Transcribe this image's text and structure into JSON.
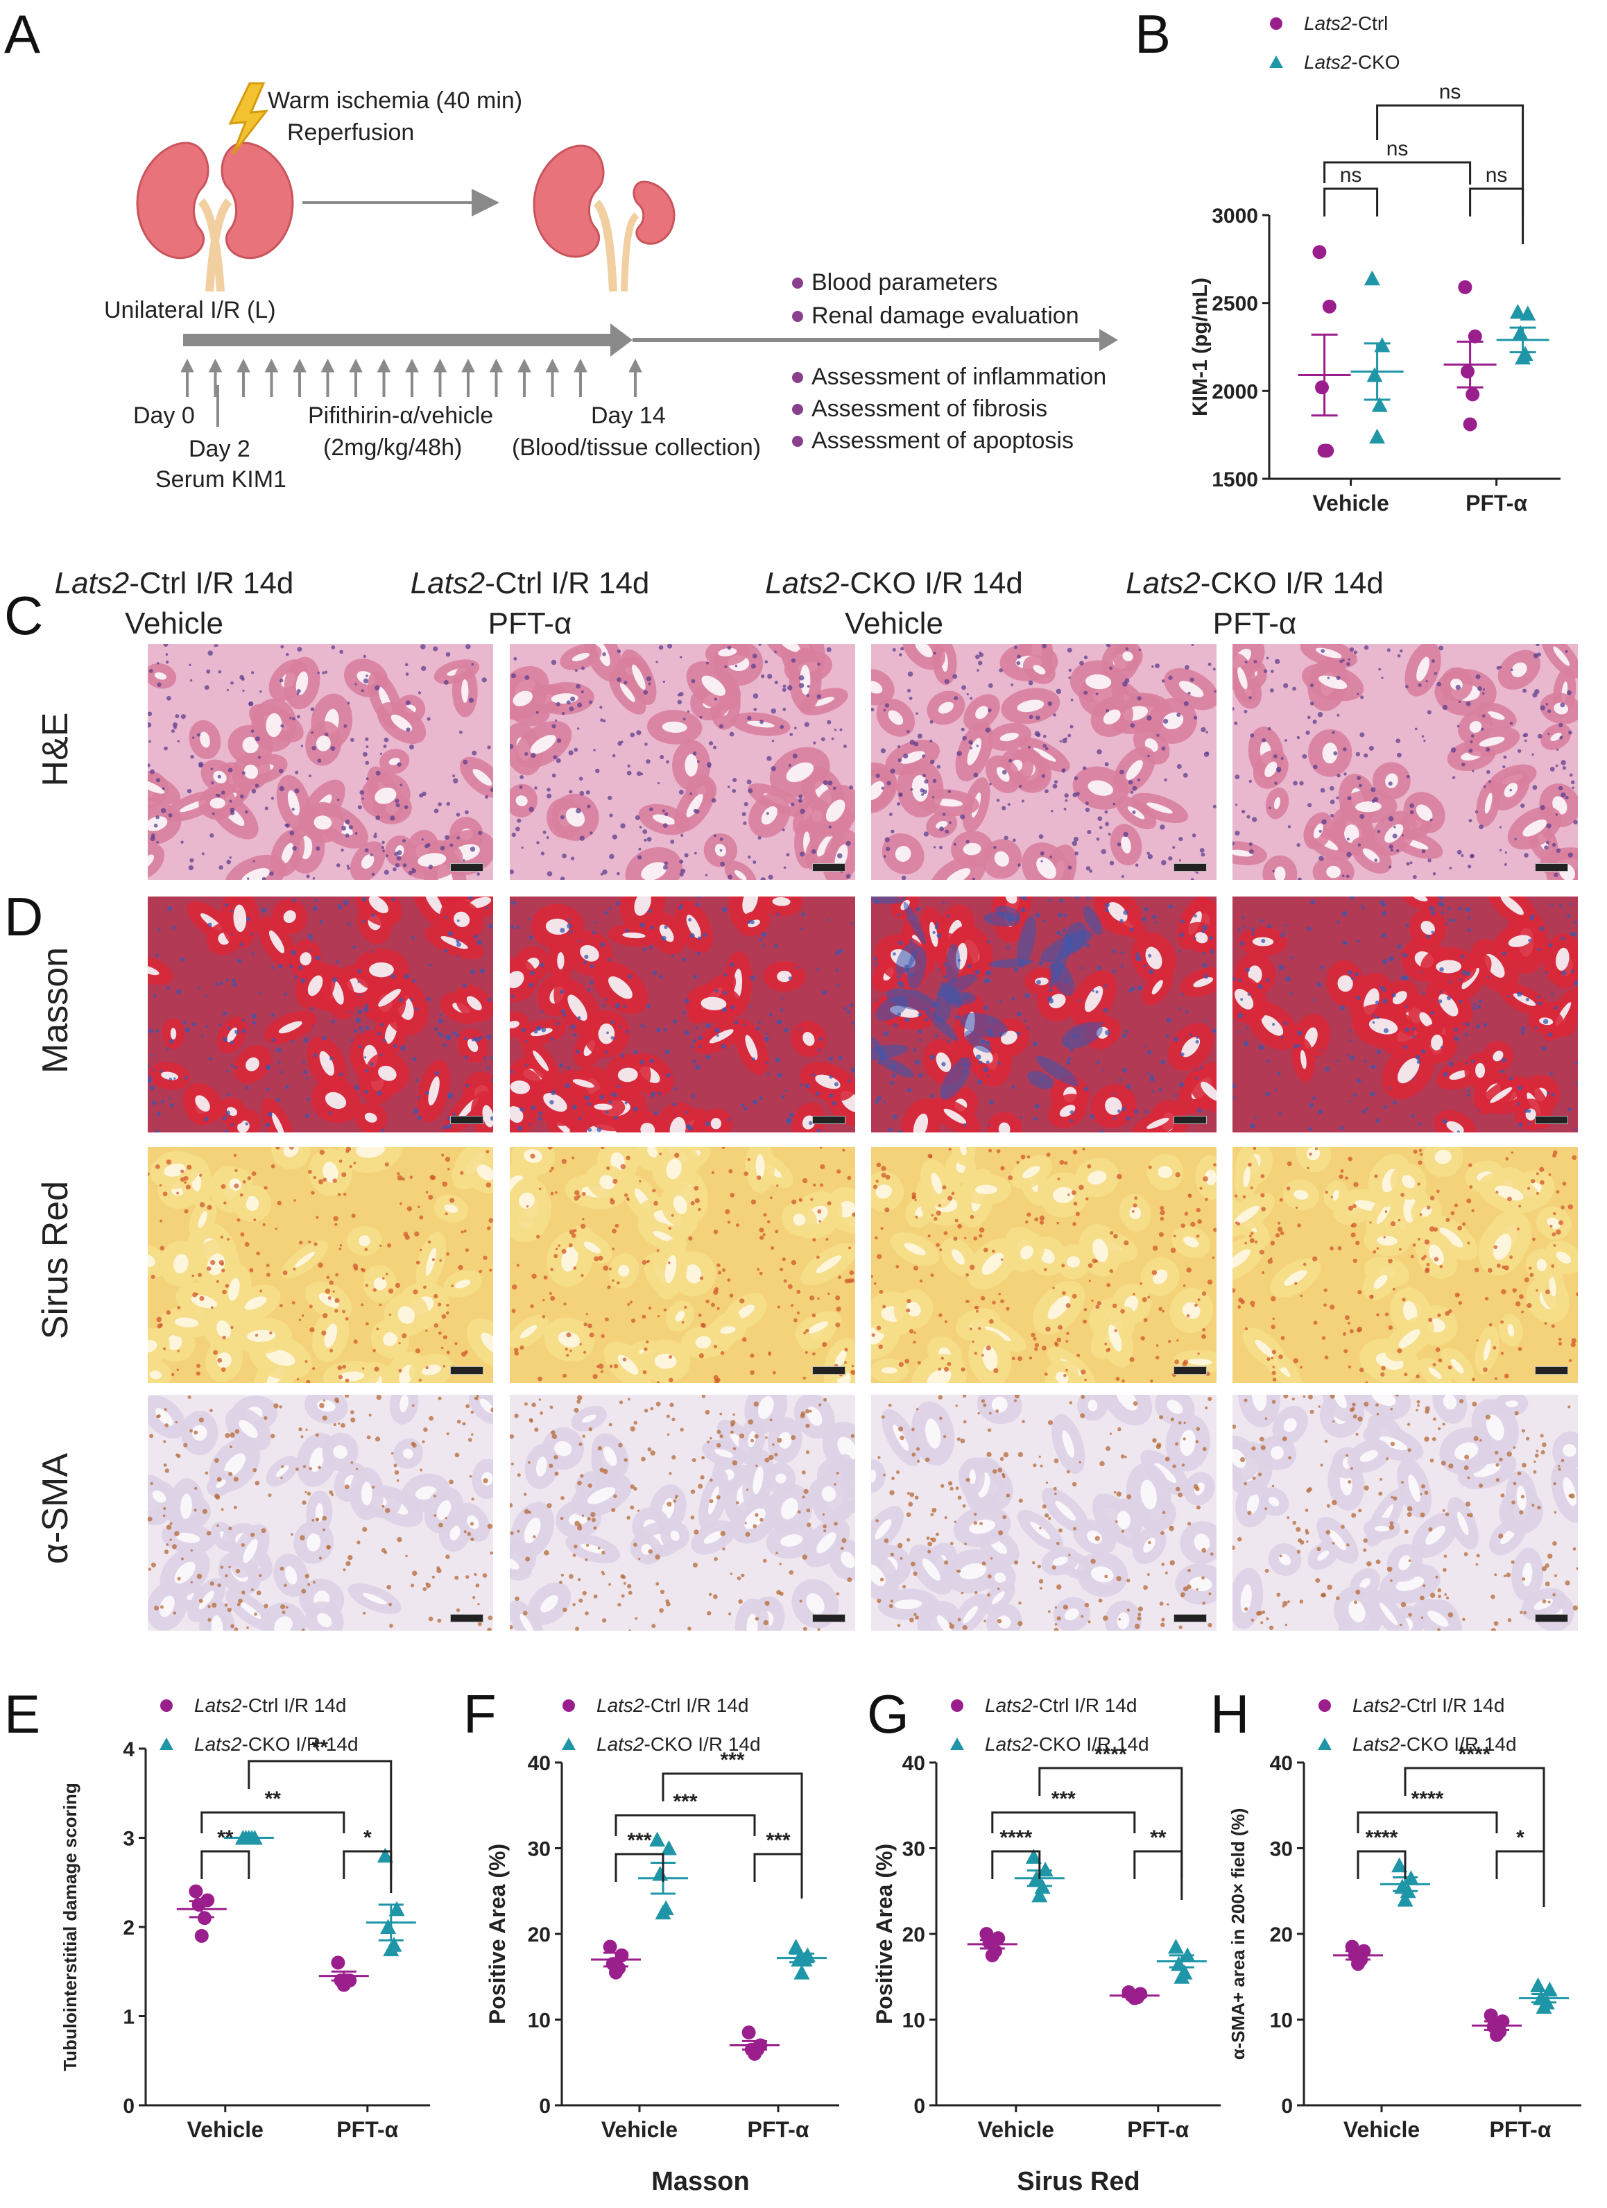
{
  "panels": {
    "A": {
      "letter": "A",
      "ischemia_label": "Warm ischemia (40 min)",
      "reperfusion_label": "Reperfusion",
      "unilateral_label": "Unilateral I/R (L)",
      "day0": "Day 0",
      "day2": "Day 2",
      "serum": "Serum KIM1",
      "drug": "Pifithirin-α/vehicle",
      "dose": "(2mg/kg/48h)",
      "day14": "Day 14",
      "collection": "(Blood/tissue collection)",
      "outcomes": [
        "Blood parameters",
        "Renal damage evaluation",
        "Assessment of inflammation",
        "Assessment of fibrosis",
        "Assessment of apoptosis"
      ],
      "colors": {
        "kidney": "#e8737a",
        "ureter": "#f4d7b0",
        "arrow": "#808080",
        "bolt": "#f2c230",
        "bullet": "#8a3f8e"
      }
    },
    "B": {
      "letter": "B"
    },
    "C": {
      "letter": "C"
    },
    "D": {
      "letter": "D"
    },
    "E": {
      "letter": "E"
    },
    "F": {
      "letter": "F"
    },
    "G": {
      "letter": "G"
    },
    "H": {
      "letter": "H"
    }
  },
  "histology": {
    "columns": [
      {
        "gene": "Lats2",
        "rest": "-Ctrl I/R 14d",
        "treatment": "Vehicle"
      },
      {
        "gene": "Lats2",
        "rest": "-Ctrl I/R 14d",
        "treatment": "PFT-α"
      },
      {
        "gene": "Lats2",
        "rest": "-CKO I/R 14d",
        "treatment": "Vehicle"
      },
      {
        "gene": "Lats2",
        "rest": "-CKO I/R 14d",
        "treatment": "PFT-α"
      }
    ],
    "rows": [
      {
        "label": "H&E",
        "stain": "he"
      },
      {
        "label": "Masson",
        "stain": "masson"
      },
      {
        "label": "Sirus Red",
        "stain": "sirius"
      },
      {
        "label": "α-SMA",
        "stain": "sma"
      }
    ],
    "stain_colors": {
      "he": {
        "bg": "#e9b8cf",
        "tubule": "#d9809f",
        "lumen": "#f8eef4",
        "nuclei": "#5c3f8e"
      },
      "masson": {
        "bg": "#b23a55",
        "tubule": "#d8283a",
        "lumen": "#f3e4ea",
        "nuclei": "#3b58b0"
      },
      "sirius": {
        "bg": "#f3d27a",
        "tubule": "#f6de8a",
        "lumen": "#fdf6dc",
        "nuclei": "#d2572c"
      },
      "sma": {
        "bg": "#eee7f0",
        "tubule": "#ddd2e6",
        "lumen": "#faf7fb",
        "nuclei": "#b56a35"
      }
    }
  },
  "chart_data": [
    {
      "panel": "B",
      "type": "scatter",
      "ylabel": "KIM-1 (pg/mL)",
      "xlabel": "",
      "categories": [
        "Vehicle",
        "PFT-α"
      ],
      "ylim": [
        1500,
        3000
      ],
      "yticks": [
        1500,
        2000,
        2500,
        3000
      ],
      "legend": {
        "placement": "top",
        "entries": [
          {
            "gene": "Lats2",
            "rest": "-Ctrl"
          },
          {
            "gene": "Lats2",
            "rest": "-CKO"
          }
        ]
      },
      "series": [
        {
          "marker": "circle",
          "color": "#9a1e8c",
          "groups": [
            [
              2790,
              2480,
              2020,
              1660,
              1660
            ],
            [
              2590,
              2310,
              2110,
              1980,
              1810
            ]
          ],
          "means": [
            2090,
            2150
          ],
          "sem": [
            230,
            130
          ]
        },
        {
          "marker": "triangle",
          "color": "#1e96a7",
          "groups": [
            [
              2640,
              2260,
              2090,
              1920,
              1740
            ],
            [
              2450,
              2440,
              2330,
              2210,
              2190
            ]
          ],
          "means": [
            2110,
            2290
          ],
          "sem": [
            160,
            70
          ]
        }
      ],
      "significance": [
        {
          "from": [
            0,
            0
          ],
          "to": [
            0,
            1
          ],
          "label": "ns",
          "level": 0
        },
        {
          "from": [
            1,
            0
          ],
          "to": [
            1,
            1
          ],
          "label": "ns",
          "level": 0
        },
        {
          "from": [
            0,
            0
          ],
          "to": [
            1,
            0
          ],
          "label": "ns",
          "level": 1
        },
        {
          "from": [
            0,
            1
          ],
          "to": [
            1,
            1
          ],
          "label": "ns",
          "level": 2
        }
      ]
    },
    {
      "panel": "E",
      "type": "scatter",
      "ylabel": "Tubulointerstitial damage scoring",
      "xlabel": "",
      "categories": [
        "Vehicle",
        "PFT-α"
      ],
      "ylim": [
        0,
        4
      ],
      "yticks": [
        0,
        1,
        2,
        3,
        4
      ],
      "legend": {
        "placement": "top",
        "entries": [
          {
            "gene": "Lats2",
            "rest": "-Ctrl I/R 14d"
          },
          {
            "gene": "Lats2",
            "rest": "-CKO I/R 14d"
          }
        ]
      },
      "series": [
        {
          "marker": "circle",
          "color": "#9a1e8c",
          "groups": [
            [
              2.4,
              2.3,
              2.25,
              2.1,
              1.9
            ],
            [
              1.6,
              1.4,
              1.4,
              1.4,
              1.35
            ]
          ],
          "means": [
            2.2,
            1.45
          ],
          "sem": [
            0.09,
            0.05
          ]
        },
        {
          "marker": "triangle",
          "color": "#1e96a7",
          "groups": [
            [
              3.0,
              3.0,
              3.0,
              3.0,
              3.0
            ],
            [
              2.8,
              2.2,
              2.0,
              1.8,
              1.75
            ]
          ],
          "means": [
            3.0,
            2.05
          ],
          "sem": [
            0.0,
            0.2
          ]
        }
      ],
      "significance": [
        {
          "from": [
            0,
            0
          ],
          "to": [
            0,
            1
          ],
          "label": "**",
          "level": 0
        },
        {
          "from": [
            1,
            0
          ],
          "to": [
            1,
            1
          ],
          "label": "*",
          "level": 0
        },
        {
          "from": [
            0,
            0
          ],
          "to": [
            1,
            0
          ],
          "label": "**",
          "level": 1
        },
        {
          "from": [
            0,
            1
          ],
          "to": [
            1,
            1
          ],
          "label": "**",
          "level": 2
        }
      ]
    },
    {
      "panel": "F",
      "type": "scatter",
      "ylabel": "Positive Area (%)",
      "xlabel": "Masson",
      "categories": [
        "Vehicle",
        "PFT-α"
      ],
      "ylim": [
        0,
        40
      ],
      "yticks": [
        0,
        10,
        20,
        30,
        40
      ],
      "legend": {
        "placement": "top",
        "entries": [
          {
            "gene": "Lats2",
            "rest": "-Ctrl I/R 14d"
          },
          {
            "gene": "Lats2",
            "rest": "-CKO I/R 14d"
          }
        ]
      },
      "series": [
        {
          "marker": "circle",
          "color": "#9a1e8c",
          "groups": [
            [
              18.5,
              17.5,
              16.5,
              16.0,
              15.5
            ],
            [
              8.5,
              7.0,
              6.5,
              6.5,
              6.0
            ]
          ],
          "means": [
            17.0,
            7.0
          ],
          "sem": [
            0.8,
            0.5
          ]
        },
        {
          "marker": "triangle",
          "color": "#1e96a7",
          "groups": [
            [
              31.0,
              30.0,
              27.0,
              23.0,
              22.5
            ],
            [
              18.5,
              17.5,
              17.0,
              17.0,
              15.5
            ]
          ],
          "means": [
            26.5,
            17.2
          ],
          "sem": [
            1.8,
            0.5
          ]
        }
      ],
      "significance": [
        {
          "from": [
            0,
            0
          ],
          "to": [
            0,
            1
          ],
          "label": "***",
          "level": 0
        },
        {
          "from": [
            1,
            0
          ],
          "to": [
            1,
            1
          ],
          "label": "***",
          "level": 0
        },
        {
          "from": [
            0,
            0
          ],
          "to": [
            1,
            0
          ],
          "label": "***",
          "level": 1
        },
        {
          "from": [
            0,
            1
          ],
          "to": [
            1,
            1
          ],
          "label": "***",
          "level": 2
        }
      ]
    },
    {
      "panel": "G",
      "type": "scatter",
      "ylabel": "Positive Area (%)",
      "xlabel": "Sirus Red",
      "categories": [
        "Vehicle",
        "PFT-α"
      ],
      "ylim": [
        0,
        40
      ],
      "yticks": [
        0,
        10,
        20,
        30,
        40
      ],
      "legend": {
        "placement": "top",
        "entries": [
          {
            "gene": "Lats2",
            "rest": "-Ctrl I/R 14d"
          },
          {
            "gene": "Lats2",
            "rest": "-CKO I/R 14d"
          }
        ]
      },
      "series": [
        {
          "marker": "circle",
          "color": "#9a1e8c",
          "groups": [
            [
              20.0,
              19.5,
              19.0,
              18.0,
              17.5
            ],
            [
              13.2,
              13.0,
              12.8,
              12.6,
              12.5
            ]
          ],
          "means": [
            18.8,
            12.8
          ],
          "sem": [
            0.5,
            0.15
          ]
        },
        {
          "marker": "triangle",
          "color": "#1e96a7",
          "groups": [
            [
              29.0,
              27.5,
              26.5,
              25.5,
              24.5
            ],
            [
              18.5,
              17.5,
              16.5,
              15.5,
              15.0
            ]
          ],
          "means": [
            26.5,
            16.8
          ],
          "sem": [
            0.9,
            0.7
          ]
        }
      ],
      "significance": [
        {
          "from": [
            0,
            0
          ],
          "to": [
            0,
            1
          ],
          "label": "****",
          "level": 0
        },
        {
          "from": [
            1,
            0
          ],
          "to": [
            1,
            1
          ],
          "label": "**",
          "level": 0
        },
        {
          "from": [
            0,
            0
          ],
          "to": [
            1,
            0
          ],
          "label": "***",
          "level": 1
        },
        {
          "from": [
            0,
            1
          ],
          "to": [
            1,
            1
          ],
          "label": "****",
          "level": 2
        }
      ]
    },
    {
      "panel": "H",
      "type": "scatter",
      "ylabel": "α-SMA+ area in 200× field (%)",
      "xlabel": "",
      "categories": [
        "Vehicle",
        "PFT-α"
      ],
      "ylim": [
        0,
        40
      ],
      "yticks": [
        0,
        10,
        20,
        30,
        40
      ],
      "legend": {
        "placement": "top",
        "entries": [
          {
            "gene": "Lats2",
            "rest": "-Ctrl I/R 14d"
          },
          {
            "gene": "Lats2",
            "rest": "-CKO I/R 14d"
          }
        ]
      },
      "series": [
        {
          "marker": "circle",
          "color": "#9a1e8c",
          "groups": [
            [
              18.5,
              18.0,
              17.5,
              17.0,
              16.5
            ],
            [
              10.5,
              9.8,
              9.2,
              8.6,
              8.2
            ]
          ],
          "means": [
            17.5,
            9.3
          ],
          "sem": [
            0.5,
            0.5
          ]
        },
        {
          "marker": "triangle",
          "color": "#1e96a7",
          "groups": [
            [
              28.0,
              26.5,
              25.5,
              25.0,
              24.0
            ],
            [
              14.0,
              13.5,
              12.5,
              12.0,
              11.5
            ]
          ],
          "means": [
            25.8,
            12.5
          ],
          "sem": [
            0.8,
            0.5
          ]
        }
      ],
      "significance": [
        {
          "from": [
            0,
            0
          ],
          "to": [
            0,
            1
          ],
          "label": "****",
          "level": 0
        },
        {
          "from": [
            1,
            0
          ],
          "to": [
            1,
            1
          ],
          "label": "*",
          "level": 0
        },
        {
          "from": [
            0,
            0
          ],
          "to": [
            1,
            0
          ],
          "label": "****",
          "level": 1
        },
        {
          "from": [
            0,
            1
          ],
          "to": [
            1,
            1
          ],
          "label": "****",
          "level": 2
        }
      ]
    }
  ]
}
